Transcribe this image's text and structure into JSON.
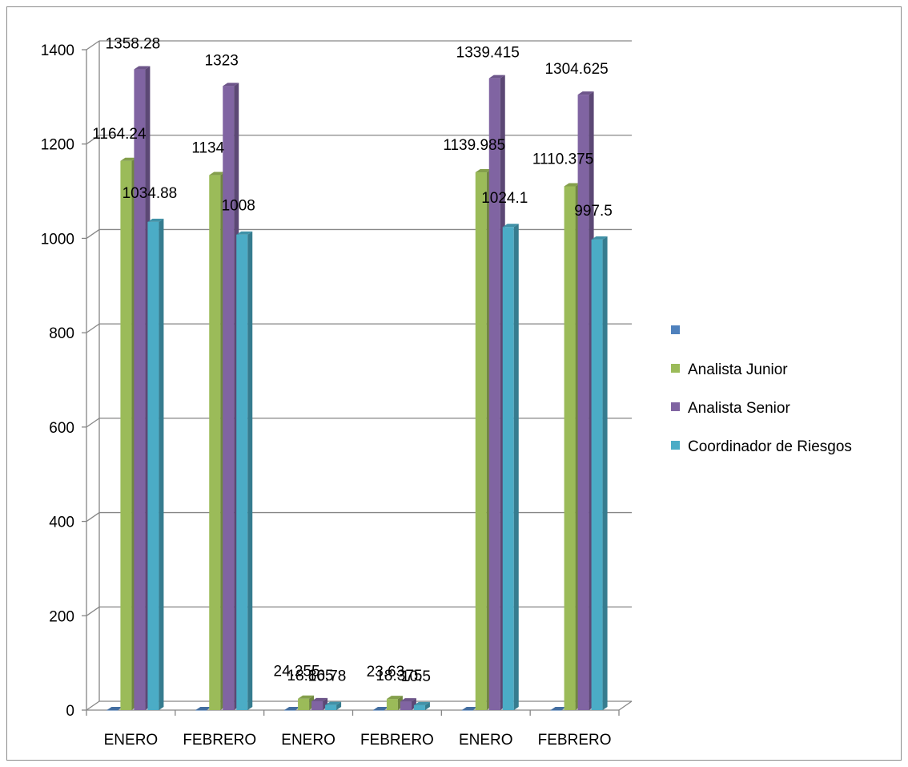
{
  "chart_data": {
    "type": "bar",
    "style": "3d-clustered-column",
    "categories": [
      "ENERO",
      "FEBRERO",
      "ENERO",
      "FEBRERO",
      "ENERO",
      "FEBRERO"
    ],
    "series": [
      {
        "name": "",
        "color": "#4F81BD",
        "values": [
          0,
          0,
          0,
          0,
          0,
          0
        ],
        "labels": [
          "",
          "",
          "",
          "",
          "",
          ""
        ]
      },
      {
        "name": "Analista Junior",
        "color": "#9BBB59",
        "values": [
          1164.24,
          1134,
          24.255,
          23.63,
          1139.985,
          1110.375
        ],
        "labels": [
          "1164.24",
          "1134",
          "24.255",
          "23.63",
          "1139.985",
          "1110.375"
        ]
      },
      {
        "name": "Analista Senior",
        "color": "#8064A2",
        "values": [
          1358.28,
          1323,
          18.865,
          18.375,
          1339.415,
          1304.625
        ],
        "labels": [
          "1358.28",
          "1323",
          "18.865",
          "18.375",
          "1339.415",
          "1304.625"
        ]
      },
      {
        "name": "Coordinador de Riesgos",
        "color": "#4BACC6",
        "values": [
          1034.88,
          1008,
          10.78,
          10.5,
          1024.1,
          997.5
        ],
        "labels": [
          "1034.88",
          "1008",
          "10.78",
          "10.5",
          "1024.1",
          "997.5"
        ]
      }
    ],
    "y_ticks": [
      "0",
      "200",
      "400",
      "600",
      "800",
      "1000",
      "1200",
      "1400"
    ],
    "ylim": [
      0,
      1400
    ],
    "grid": true,
    "legend_position": "right",
    "title": "",
    "xlabel": "",
    "ylabel": ""
  }
}
